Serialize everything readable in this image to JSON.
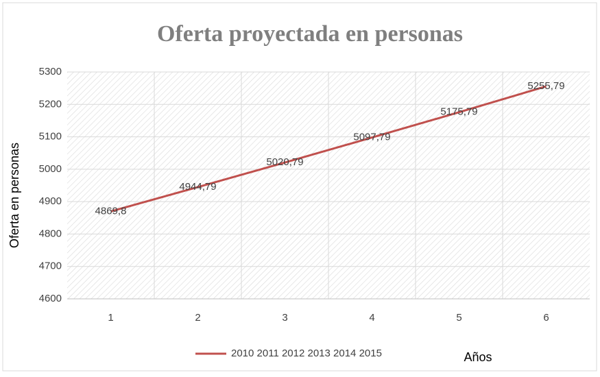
{
  "chart_data": {
    "type": "line",
    "title": "Oferta proyectada en personas",
    "categories": [
      "1",
      "2",
      "3",
      "4",
      "5",
      "6"
    ],
    "series": [
      {
        "name": "2010 2011 2012 2013 2014 2015",
        "color": "#c0504d",
        "values": [
          4869.8,
          4944.79,
          5020.79,
          5097.79,
          5175.79,
          5255.79
        ],
        "value_labels": [
          "4869,8",
          "4944,79",
          "5020,79",
          "5097,79",
          "5175,79",
          "5255,79"
        ]
      }
    ],
    "ylim": [
      4600,
      5300
    ],
    "yticks": [
      4600,
      4700,
      4800,
      4900,
      5000,
      5100,
      5200,
      5300
    ],
    "xlabel": "Años",
    "ylabel": "Oferta en personas",
    "grid": true,
    "legend": "bottom"
  }
}
